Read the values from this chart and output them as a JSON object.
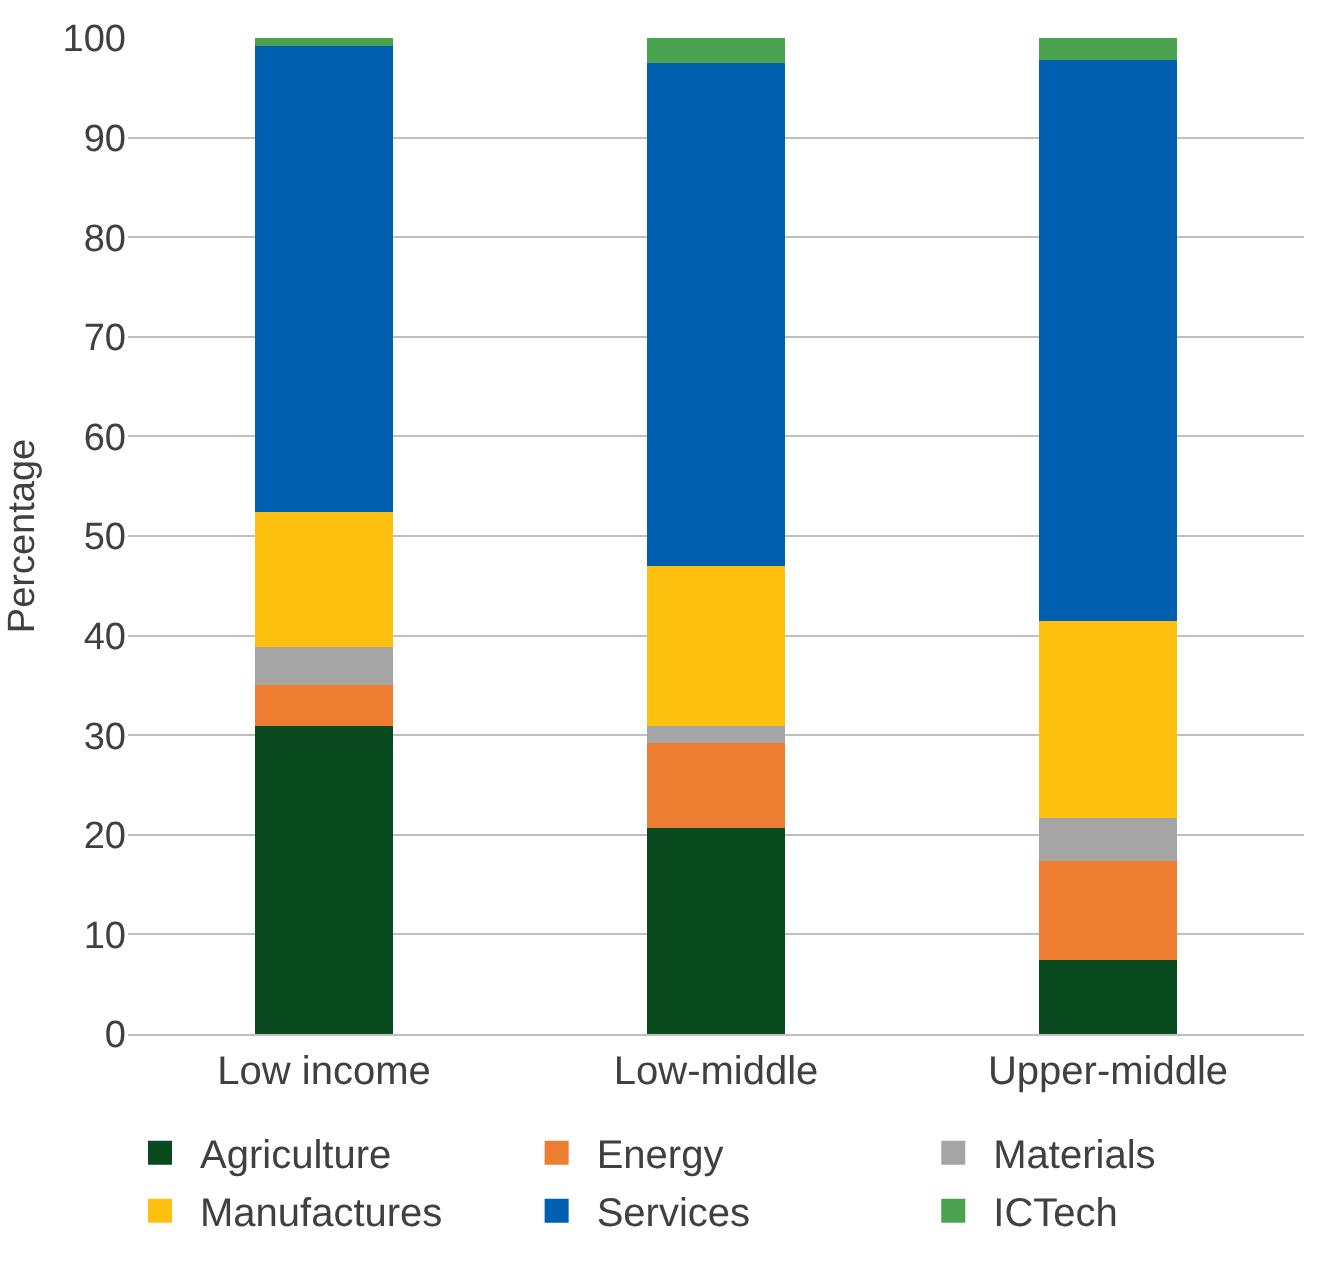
{
  "chart_data": {
    "type": "bar",
    "stacked": true,
    "ylabel": "Percentage",
    "categories": [
      "Low income",
      "Low-middle",
      "Upper-middle"
    ],
    "series": [
      {
        "name": "Agriculture",
        "color": "#0a4a1f",
        "values": [
          30.9,
          20.7,
          7.4
        ]
      },
      {
        "name": "Energy",
        "color": "#ed7d31",
        "values": [
          4.1,
          8.5,
          10.0
        ]
      },
      {
        "name": "Materials",
        "color": "#a5a5a5",
        "values": [
          3.9,
          1.7,
          4.3
        ]
      },
      {
        "name": "Manufactures",
        "color": "#fec00f",
        "values": [
          13.5,
          16.1,
          19.8
        ]
      },
      {
        "name": "Services",
        "color": "#015fb0",
        "values": [
          46.8,
          50.5,
          56.3
        ]
      },
      {
        "name": "ICTech",
        "color": "#4ca34f",
        "values": [
          0.8,
          2.5,
          2.2
        ]
      }
    ],
    "ylim": [
      0,
      100
    ],
    "yticks": [
      0,
      10,
      20,
      30,
      40,
      50,
      60,
      70,
      80,
      90,
      100
    ],
    "grid": "y",
    "legend": "bottom"
  }
}
